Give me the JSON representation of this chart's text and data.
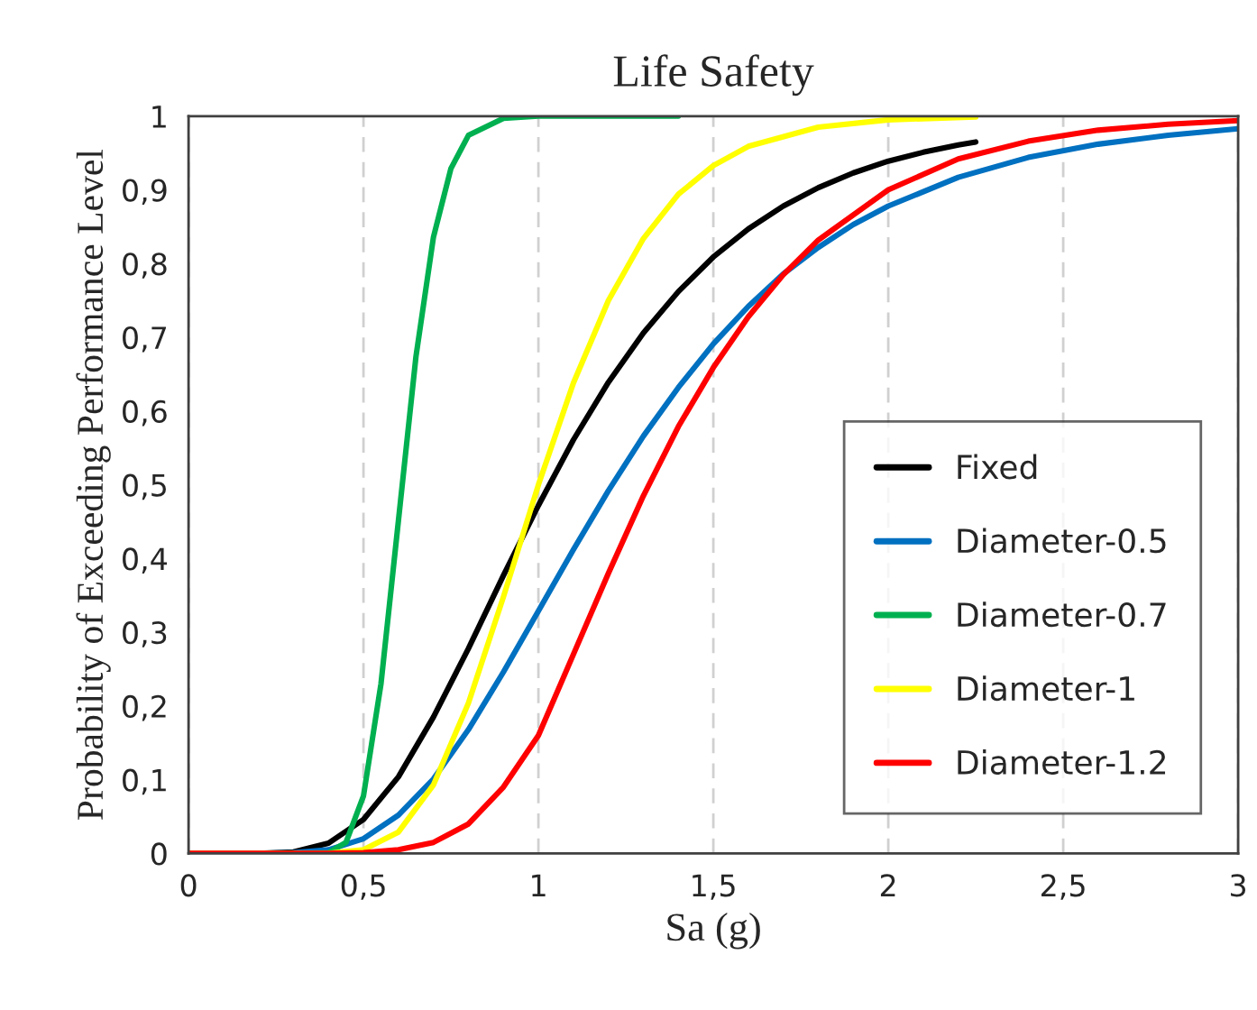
{
  "chart_data": {
    "type": "line",
    "title": "Life Safety",
    "xlabel": "Sa (g)",
    "ylabel": "Probability of Exceeding Performance Level",
    "xlim": [
      0,
      3
    ],
    "ylim": [
      0,
      1
    ],
    "xticks": [
      0,
      {
        "value": 0.5,
        "label": "0,5"
      },
      1,
      {
        "value": 1.5,
        "label": "1,5"
      },
      2,
      {
        "value": 2.5,
        "label": "2,5"
      },
      3
    ],
    "yticks": [
      0,
      {
        "value": 0.1,
        "label": "0,1"
      },
      {
        "value": 0.2,
        "label": "0,2"
      },
      {
        "value": 0.3,
        "label": "0,3"
      },
      {
        "value": 0.4,
        "label": "0,4"
      },
      {
        "value": 0.5,
        "label": "0,5"
      },
      {
        "value": 0.6,
        "label": "0,6"
      },
      {
        "value": 0.7,
        "label": "0,7"
      },
      {
        "value": 0.8,
        "label": "0,8"
      },
      {
        "value": 0.9,
        "label": "0,9"
      },
      1
    ],
    "grid": "x",
    "legend": "right",
    "marker": "none",
    "line_style": "solid",
    "series": [
      {
        "name": "Fixed",
        "color": "#000000",
        "x": [
          0,
          0.2,
          0.3,
          0.4,
          0.5,
          0.6,
          0.7,
          0.8,
          0.9,
          1.0,
          1.1,
          1.2,
          1.3,
          1.4,
          1.5,
          1.6,
          1.7,
          1.8,
          1.9,
          2.0,
          2.1,
          2.2,
          2.25
        ],
        "values": [
          0,
          0,
          0.002,
          0.014,
          0.046,
          0.104,
          0.185,
          0.278,
          0.377,
          0.472,
          0.561,
          0.639,
          0.706,
          0.762,
          0.809,
          0.847,
          0.878,
          0.903,
          0.923,
          0.939,
          0.951,
          0.961,
          0.965
        ]
      },
      {
        "name": "Diameter-0.5",
        "color": "#0070c0",
        "x": [
          0,
          0.2,
          0.3,
          0.4,
          0.5,
          0.6,
          0.7,
          0.8,
          0.9,
          1.0,
          1.1,
          1.2,
          1.3,
          1.4,
          1.5,
          1.6,
          1.7,
          1.8,
          1.9,
          2.0,
          2.2,
          2.4,
          2.6,
          2.8,
          3.0
        ],
        "values": [
          0,
          0,
          0.001,
          0.005,
          0.02,
          0.052,
          0.101,
          0.168,
          0.246,
          0.329,
          0.412,
          0.492,
          0.566,
          0.632,
          0.691,
          0.742,
          0.786,
          0.822,
          0.853,
          0.878,
          0.917,
          0.944,
          0.962,
          0.974,
          0.983
        ]
      },
      {
        "name": "Diameter-0.7",
        "color": "#00b050",
        "x": [
          0.35,
          0.4,
          0.45,
          0.5,
          0.55,
          0.6,
          0.65,
          0.7,
          0.75,
          0.8,
          0.9,
          1.0,
          1.2,
          1.4
        ],
        "values": [
          0,
          0.001,
          0.015,
          0.078,
          0.23,
          0.452,
          0.674,
          0.836,
          0.929,
          0.974,
          0.997,
          1.0,
          1.0,
          1.0
        ]
      },
      {
        "name": "Diameter-1",
        "color": "#ffff00",
        "x": [
          0,
          0.2,
          0.4,
          0.5,
          0.6,
          0.7,
          0.8,
          0.9,
          1.0,
          1.1,
          1.2,
          1.3,
          1.4,
          1.5,
          1.6,
          1.8,
          2.0,
          2.25
        ],
        "values": [
          0,
          0,
          0,
          0.005,
          0.029,
          0.093,
          0.204,
          0.348,
          0.5,
          0.638,
          0.75,
          0.834,
          0.894,
          0.933,
          0.959,
          0.985,
          0.995,
          0.999
        ]
      },
      {
        "name": "Diameter-1.2",
        "color": "#ff0000",
        "x": [
          0,
          0.2,
          0.4,
          0.5,
          0.6,
          0.7,
          0.8,
          0.9,
          1.0,
          1.1,
          1.2,
          1.3,
          1.4,
          1.5,
          1.6,
          1.7,
          1.8,
          2.0,
          2.2,
          2.4,
          2.6,
          2.8,
          3.0
        ],
        "values": [
          0,
          0,
          0,
          0.001,
          0.005,
          0.015,
          0.04,
          0.09,
          0.16,
          0.27,
          0.38,
          0.485,
          0.579,
          0.659,
          0.728,
          0.785,
          0.832,
          0.9,
          0.942,
          0.966,
          0.981,
          0.989,
          0.994
        ]
      }
    ]
  }
}
